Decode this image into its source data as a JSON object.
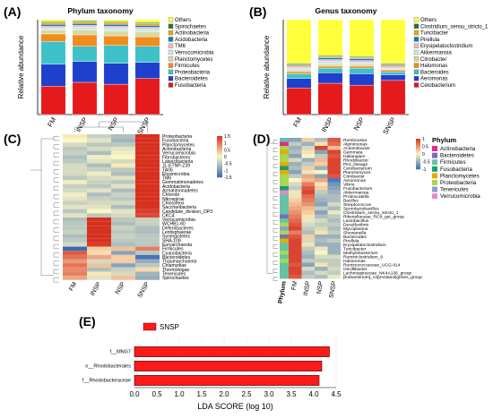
{
  "colors": {
    "grid": "#cccccc",
    "axis": "#000000",
    "lefse_bar": "#ff1a1a",
    "heat_low": "#3b6bb5",
    "heat_mid": "#fbf6c4",
    "heat_high": "#d7301f"
  },
  "chart_data": [
    {
      "panel": "(A)",
      "type": "bar",
      "stacked": true,
      "title": "Phylum taxonomy",
      "ylabel": "Relative abundance",
      "categories": [
        "FM",
        "INSP",
        "NSP",
        "SNSP"
      ],
      "legend_position": "right",
      "series": [
        {
          "name": "Fusobacteria",
          "color": "#e41a1c",
          "values": [
            0.3,
            0.34,
            0.32,
            0.38
          ]
        },
        {
          "name": "Bacteroidetes",
          "color": "#1f3fcc",
          "values": [
            0.23,
            0.22,
            0.22,
            0.17
          ]
        },
        {
          "name": "Proteobacteria",
          "color": "#3ec1c8",
          "values": [
            0.24,
            0.16,
            0.19,
            0.17
          ]
        },
        {
          "name": "Firmicutes",
          "color": "#f08c1c",
          "values": [
            0.08,
            0.12,
            0.1,
            0.1
          ]
        },
        {
          "name": "Planctomycetes",
          "color": "#d9d9a0",
          "values": [
            0.04,
            0.05,
            0.05,
            0.05
          ]
        },
        {
          "name": "Verrucomicrobia",
          "color": "#c7ebe6",
          "values": [
            0.02,
            0.03,
            0.03,
            0.03
          ]
        },
        {
          "name": "TM6",
          "color": "#f6b6c9",
          "values": [
            0.02,
            0.02,
            0.02,
            0.02
          ]
        },
        {
          "name": "Acidobacteria",
          "color": "#1f78b4",
          "values": [
            0.02,
            0.02,
            0.02,
            0.02
          ]
        },
        {
          "name": "Actinobacteria",
          "color": "#e6ab02",
          "values": [
            0.02,
            0.02,
            0.02,
            0.02
          ]
        },
        {
          "name": "Spirochaetes",
          "color": "#1b7837",
          "values": [
            0.01,
            0.01,
            0.01,
            0.01
          ]
        },
        {
          "name": "Others",
          "color": "#ffff3b",
          "values": [
            0.02,
            0.01,
            0.02,
            0.03
          ]
        }
      ]
    },
    {
      "panel": "(B)",
      "type": "bar",
      "stacked": true,
      "title": "Genus taxonomy",
      "ylabel": "Relative abundance",
      "categories": [
        "FM",
        "INSP",
        "NSP",
        "SNSP"
      ],
      "legend_position": "right",
      "series": [
        {
          "name": "Cetobacterium",
          "color": "#e41a1c",
          "values": [
            0.28,
            0.33,
            0.31,
            0.36
          ]
        },
        {
          "name": "Aeromonas",
          "color": "#1f3fcc",
          "values": [
            0.1,
            0.11,
            0.12,
            0.06
          ]
        },
        {
          "name": "Bacteroides",
          "color": "#3ec1c8",
          "values": [
            0.05,
            0.05,
            0.06,
            0.03
          ]
        },
        {
          "name": "Halomonas",
          "color": "#f08c1c",
          "values": [
            0.02,
            0.02,
            0.02,
            0.02
          ]
        },
        {
          "name": "Citrobacter",
          "color": "#d9d9a0",
          "values": [
            0.02,
            0.02,
            0.02,
            0.01
          ]
        },
        {
          "name": "Akkermansia",
          "color": "#c7ebe6",
          "values": [
            0.02,
            0.03,
            0.02,
            0.01
          ]
        },
        {
          "name": "Erysipelatoclostridium",
          "color": "#f6b6c9",
          "values": [
            0.02,
            0.02,
            0.02,
            0.02
          ]
        },
        {
          "name": "Pirellula",
          "color": "#1f78b4",
          "values": [
            0.01,
            0.02,
            0.02,
            0.01
          ]
        },
        {
          "name": "Turicibacter",
          "color": "#e6ab02",
          "values": [
            0.01,
            0.01,
            0.01,
            0.01
          ]
        },
        {
          "name": "Clostridium_sensu_stricto_1",
          "color": "#1b7837",
          "values": [
            0.01,
            0.01,
            0.01,
            0.01
          ]
        },
        {
          "name": "Others",
          "color": "#ffff3b",
          "values": [
            0.46,
            0.38,
            0.39,
            0.46
          ]
        }
      ]
    },
    {
      "panel": "(C)",
      "type": "heatmap",
      "columns": [
        "FM",
        "INSP",
        "NSP",
        "SNSP"
      ],
      "colorbar_ticks": [
        "1.5",
        "1",
        "0.5",
        "0",
        "-0.5",
        "-1",
        "-1.5"
      ],
      "colorbar_range": [
        -1.5,
        1.5
      ],
      "rows": [
        {
          "label": "Proteobacteria",
          "values": [
            0.1,
            -0.4,
            -0.6,
            1.5
          ]
        },
        {
          "label": "Fusobacteria",
          "values": [
            0.0,
            -0.2,
            -0.7,
            1.5
          ]
        },
        {
          "label": "Planctomycetes",
          "values": [
            -0.3,
            -0.5,
            -0.5,
            1.5
          ]
        },
        {
          "label": "Actinobacteria",
          "values": [
            -0.5,
            -0.3,
            -0.2,
            1.5
          ]
        },
        {
          "label": "Verrucomicrobia",
          "values": [
            -0.4,
            -0.6,
            -0.1,
            1.5
          ]
        },
        {
          "label": "Fibrobacteres",
          "values": [
            -0.6,
            -0.1,
            0.0,
            1.5
          ]
        },
        {
          "label": "Latescibacteria",
          "values": [
            -0.5,
            -0.2,
            -0.3,
            1.5
          ]
        },
        {
          "label": "JL-ETNP-Z39",
          "values": [
            -0.3,
            -0.6,
            0.1,
            1.5
          ]
        },
        {
          "label": "TA06",
          "values": [
            -0.3,
            -0.4,
            -0.5,
            1.5
          ]
        },
        {
          "label": "Elusimicrobia",
          "values": [
            -0.3,
            -0.1,
            -0.6,
            1.5
          ]
        },
        {
          "label": "TM6",
          "values": [
            -0.5,
            -0.3,
            -0.2,
            1.5
          ]
        },
        {
          "label": "Gemmatimonadetes",
          "values": [
            -0.1,
            -0.4,
            -0.5,
            1.5
          ]
        },
        {
          "label": "Acidobacteria",
          "values": [
            -0.4,
            -0.5,
            -0.2,
            1.5
          ]
        },
        {
          "label": "Armatimonadetes",
          "values": [
            -0.3,
            -0.2,
            -0.6,
            1.5
          ]
        },
        {
          "label": "Chlorobi",
          "values": [
            -0.1,
            -0.6,
            -0.4,
            1.5
          ]
        },
        {
          "label": "Nitrospirae",
          "values": [
            -0.2,
            -0.4,
            -0.5,
            1.5
          ]
        },
        {
          "label": "Chloroflexi",
          "values": [
            -0.4,
            -0.3,
            -0.3,
            1.5
          ]
        },
        {
          "label": "Saccharibacteria",
          "values": [
            -0.2,
            -0.2,
            -0.6,
            1.5
          ]
        },
        {
          "label": "Candidate_division_OP3",
          "values": [
            -0.5,
            0.0,
            -0.2,
            1.4
          ]
        },
        {
          "label": "CKC4",
          "values": [
            -0.2,
            -0.5,
            -0.3,
            1.3
          ]
        },
        {
          "label": "Verrucomicrobia",
          "values": [
            -0.6,
            1.5,
            -0.5,
            -0.4
          ]
        },
        {
          "label": "WCHB1-60",
          "values": [
            -0.5,
            1.5,
            -0.6,
            -0.4
          ]
        },
        {
          "label": "Deferribacteres",
          "values": [
            -0.5,
            1.5,
            -0.4,
            -0.6
          ]
        },
        {
          "label": "Lentisphaerae",
          "values": [
            -0.4,
            1.5,
            -0.5,
            -0.6
          ]
        },
        {
          "label": "Synergistetes",
          "values": [
            -0.6,
            1.5,
            -0.4,
            -0.5
          ]
        },
        {
          "label": "SHA-109",
          "values": [
            -0.5,
            1.5,
            -0.5,
            -0.5
          ]
        },
        {
          "label": "Euryarchaeota",
          "values": [
            -0.3,
            1.4,
            -0.6,
            -0.5
          ]
        },
        {
          "label": "Firmicutes",
          "values": [
            -1.5,
            0.3,
            0.4,
            0.9
          ]
        },
        {
          "label": "Cyanobacteria",
          "values": [
            1.2,
            0.2,
            -0.9,
            -0.5
          ]
        },
        {
          "label": "Bacteroidetes",
          "values": [
            1.0,
            0.6,
            0.3,
            -1.4
          ]
        },
        {
          "label": "Thaumarchaeota",
          "values": [
            0.7,
            -0.3,
            0.3,
            -0.8
          ]
        },
        {
          "label": "Chlamydiae",
          "values": [
            1.0,
            0.4,
            -0.9,
            -0.5
          ]
        },
        {
          "label": "Thermotogae",
          "values": [
            0.8,
            -0.6,
            -0.4,
            0.2
          ]
        },
        {
          "label": "Tenericutes",
          "values": [
            0.9,
            0.1,
            -0.3,
            -0.7
          ]
        },
        {
          "label": "Spirochaetes",
          "values": [
            0.6,
            -0.2,
            0.4,
            -0.8
          ]
        }
      ]
    },
    {
      "panel": "(D)",
      "type": "heatmap",
      "columns": [
        "Phylum",
        "FM",
        "INSP",
        "NSP",
        "SNSP"
      ],
      "colorbar_ticks": [
        "1",
        "0.5",
        "0",
        "-0.5",
        "-1"
      ],
      "colorbar_range": [
        -1,
        1
      ],
      "phylum_legend_title": "Phylum",
      "phylum_legend": [
        {
          "name": "Actinobacteria",
          "color": "#e7298a"
        },
        {
          "name": "Bacteroidetes",
          "color": "#7570b3"
        },
        {
          "name": "Firmicutes",
          "color": "#66c2a5"
        },
        {
          "name": "Fusobacteria",
          "color": "#1b9e77"
        },
        {
          "name": "Planctomycetes",
          "color": "#e6ab02"
        },
        {
          "name": "Proteobacteria",
          "color": "#a6d854"
        },
        {
          "name": "Tenericutes",
          "color": "#8da0cb"
        },
        {
          "name": "Verrucomicrobia",
          "color": "#e78ac3"
        }
      ],
      "rows": [
        {
          "label": "Romboutsia",
          "phylum": "Firmicutes",
          "values": [
            -0.6,
            0.2,
            -0.4,
            0.8
          ]
        },
        {
          "label": "Alpinimonas",
          "phylum": "Actinobacteria",
          "values": [
            -0.3,
            -0.5,
            0.1,
            0.7
          ]
        },
        {
          "label": "Acinetobacter",
          "phylum": "Proteobacteria",
          "values": [
            -0.5,
            -0.2,
            0.9,
            0.3
          ]
        },
        {
          "label": "Gemmata",
          "phylum": "Planctomycetes",
          "values": [
            -0.4,
            0.1,
            -0.6,
            0.9
          ]
        },
        {
          "label": "Haliangium",
          "phylum": "Proteobacteria",
          "values": [
            -0.6,
            0.0,
            -0.3,
            0.8
          ]
        },
        {
          "label": "Rhodobacter",
          "phylum": "Proteobacteria",
          "values": [
            -0.2,
            -0.5,
            0.3,
            0.9
          ]
        },
        {
          "label": "Pir4_lineage",
          "phylum": "Planctomycetes",
          "values": [
            -0.5,
            -0.3,
            0.2,
            0.9
          ]
        },
        {
          "label": "Cetobacterium",
          "phylum": "Fusobacteria",
          "values": [
            -0.4,
            0.2,
            -0.5,
            0.9
          ]
        },
        {
          "label": "Planctomyces",
          "phylum": "Planctomycetes",
          "values": [
            -0.6,
            -0.1,
            0.0,
            0.9
          ]
        },
        {
          "label": "Citrobacter",
          "phylum": "Proteobacteria",
          "values": [
            -0.3,
            0.4,
            -0.6,
            0.8
          ]
        },
        {
          "label": "Aeromonas",
          "phylum": "Proteobacteria",
          "values": [
            0.0,
            0.3,
            0.4,
            -0.9
          ]
        },
        {
          "label": "Vibrio",
          "phylum": "Proteobacteria",
          "values": [
            -0.2,
            0.6,
            0.1,
            -0.7
          ]
        },
        {
          "label": "Fusobacterium",
          "phylum": "Fusobacteria",
          "values": [
            -0.3,
            0.8,
            0.2,
            -0.6
          ]
        },
        {
          "label": "Akkermansia",
          "phylum": "Verrucomicrobia",
          "values": [
            -0.1,
            0.9,
            -0.3,
            -0.5
          ]
        },
        {
          "label": "Proteocatella",
          "phylum": "Firmicutes",
          "values": [
            0.1,
            0.7,
            -0.4,
            -0.4
          ]
        },
        {
          "label": "Bacillus",
          "phylum": "Firmicutes",
          "values": [
            0.2,
            0.6,
            -0.5,
            -0.4
          ]
        },
        {
          "label": "Streptococcus",
          "phylum": "Firmicutes",
          "values": [
            0.3,
            0.5,
            -0.6,
            -0.2
          ]
        },
        {
          "label": "Sporolactobacillus",
          "phylum": "Firmicutes",
          "values": [
            0.4,
            0.3,
            -0.3,
            -0.4
          ]
        },
        {
          "label": "Clostridium_sensu_stricto_1",
          "phylum": "Firmicutes",
          "values": [
            0.5,
            0.2,
            -0.6,
            -0.1
          ]
        },
        {
          "label": "Rikenellaceae_RC9_gut_group",
          "phylum": "Bacteroidetes",
          "values": [
            0.6,
            0.1,
            -0.4,
            -0.3
          ]
        },
        {
          "label": "Lactobacillus",
          "phylum": "Firmicutes",
          "values": [
            0.7,
            -0.1,
            -0.2,
            -0.4
          ]
        },
        {
          "label": "Desulfovibrio",
          "phylum": "Proteobacteria",
          "values": [
            0.8,
            -0.2,
            -0.3,
            -0.3
          ]
        },
        {
          "label": "Mycoplasma",
          "phylum": "Tenericutes",
          "values": [
            0.9,
            -0.3,
            -0.2,
            -0.4
          ]
        },
        {
          "label": "Shewanella",
          "phylum": "Proteobacteria",
          "values": [
            0.6,
            -0.4,
            0.1,
            -0.3
          ]
        },
        {
          "label": "Bacteroides",
          "phylum": "Bacteroidetes",
          "values": [
            0.8,
            0.2,
            -0.5,
            -0.5
          ]
        },
        {
          "label": "Pirellula",
          "phylum": "Planctomycetes",
          "values": [
            0.9,
            -0.2,
            -0.4,
            -0.3
          ]
        },
        {
          "label": "Erysipelatoclostridium",
          "phylum": "Firmicutes",
          "values": [
            0.9,
            0.1,
            -0.5,
            -0.5
          ]
        },
        {
          "label": "Turicibacter",
          "phylum": "Firmicutes",
          "values": [
            0.9,
            -0.3,
            -0.1,
            -0.5
          ]
        },
        {
          "label": "Methylobacterium",
          "phylum": "Proteobacteria",
          "values": [
            0.9,
            -0.4,
            0.0,
            -0.5
          ]
        },
        {
          "label": "Ruminiclostridium_9",
          "phylum": "Firmicutes",
          "values": [
            0.9,
            -0.5,
            -0.2,
            -0.2
          ]
        },
        {
          "label": "Halomonas",
          "phylum": "Proteobacteria",
          "values": [
            0.9,
            -0.3,
            -0.3,
            -0.3
          ]
        },
        {
          "label": "Ruminococcaceae_UCG-014",
          "phylum": "Firmicutes",
          "values": [
            0.8,
            -0.6,
            0.1,
            -0.3
          ]
        },
        {
          "label": "Oscillibacter",
          "phylum": "Firmicutes",
          "values": [
            0.9,
            -0.2,
            -0.5,
            -0.2
          ]
        },
        {
          "label": "Lachnospiraceae_NK4A136_group",
          "phylum": "Firmicutes",
          "values": [
            0.9,
            -0.4,
            -0.2,
            -0.3
          ]
        },
        {
          "label": "[Eubacterium]_coprostanoligenes_group",
          "phylum": "Firmicutes",
          "values": [
            0.8,
            -0.3,
            -0.4,
            -0.1
          ]
        }
      ]
    },
    {
      "panel": "(E)",
      "type": "bar",
      "orientation": "horizontal",
      "legend": [
        "SNSP"
      ],
      "xlabel": "LDA SCORE (log 10)",
      "xlim": [
        0,
        4.5
      ],
      "xticks": [
        "0.0",
        "0.5",
        "1.0",
        "1.5",
        "2.0",
        "2.5",
        "3.0",
        "3.5",
        "4.0",
        "4.5"
      ],
      "categories": [
        "f__MNG7",
        "o__Rhodobacterales",
        "f__Rhodobacteraceae"
      ],
      "values": [
        4.35,
        4.18,
        4.12
      ]
    }
  ]
}
